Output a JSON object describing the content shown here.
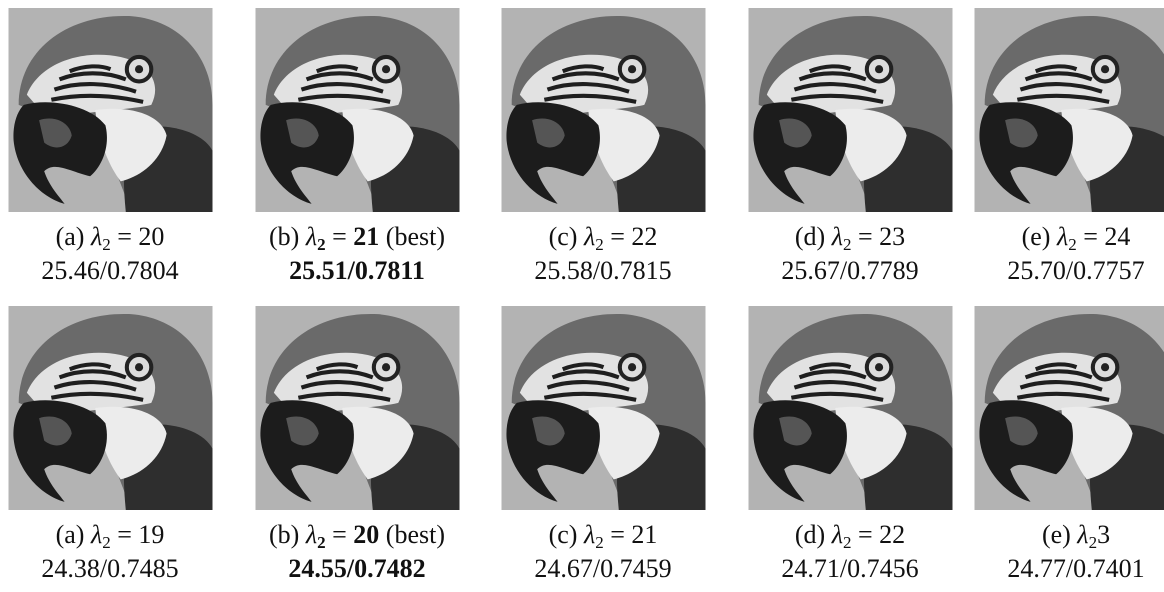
{
  "rows": [
    {
      "cells": [
        {
          "label": "(a)",
          "symbol": "λ",
          "sub": "2",
          "op": "=",
          "value": "20",
          "metrics": "25.46/0.7804"
        },
        {
          "label": "(b)",
          "symbol": "λ",
          "sub": "2",
          "op": "=",
          "value": "21",
          "note": "(best)",
          "best": true,
          "metrics": "25.51/0.7811"
        },
        {
          "label": "(c)",
          "symbol": "λ",
          "sub": "2",
          "op": "=",
          "value": "22",
          "metrics": "25.58/0.7815"
        },
        {
          "label": "(d)",
          "symbol": "λ",
          "sub": "2",
          "op": "=",
          "value": "23",
          "metrics": "25.67/0.7789"
        },
        {
          "label": "(e)",
          "symbol": "λ",
          "sub": "2",
          "op": "=",
          "value": "24",
          "metrics": "25.70/0.7757"
        }
      ]
    },
    {
      "cells": [
        {
          "label": "(a)",
          "symbol": "λ",
          "sub": "2",
          "op": "=",
          "value": "19",
          "metrics": "24.38/0.7485"
        },
        {
          "label": "(b)",
          "symbol": "λ",
          "sub": "2",
          "op": "=",
          "value": "20",
          "note": "(best)",
          "best": true,
          "metrics": "24.55/0.7482"
        },
        {
          "label": "(c)",
          "symbol": "λ",
          "sub": "2",
          "op": "=",
          "value": "21",
          "metrics": "24.67/0.7459"
        },
        {
          "label": "(d)",
          "symbol": "λ",
          "sub": "2",
          "op": "=",
          "value": "22",
          "metrics": "24.71/0.7456"
        },
        {
          "label": "(e)",
          "symbol": "λ",
          "sub": "2",
          "value": "3",
          "metrics": "24.77/0.7401"
        }
      ]
    }
  ]
}
